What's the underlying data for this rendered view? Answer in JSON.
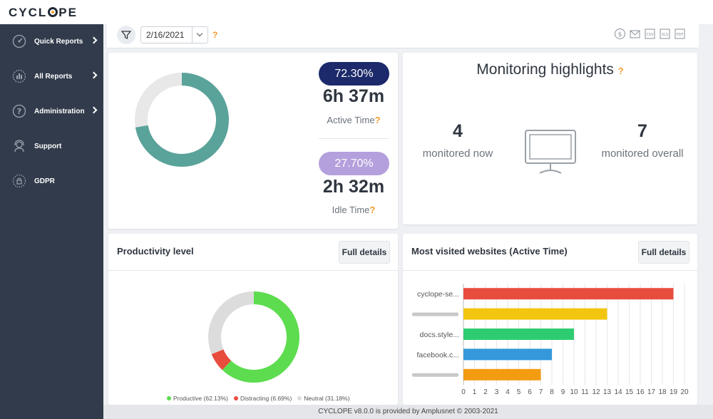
{
  "app": {
    "logo": "CYCLOPE"
  },
  "sidebar": {
    "items": [
      {
        "label": "Quick Reports",
        "icon": "gauge-icon",
        "has_arrow": true
      },
      {
        "label": "All Reports",
        "icon": "reports-icon",
        "has_arrow": true
      },
      {
        "label": "Administration",
        "icon": "help-circle-icon",
        "has_arrow": true
      },
      {
        "label": "Support",
        "icon": "support-headset-icon",
        "has_arrow": false
      },
      {
        "label": "GDPR",
        "icon": "gdpr-lock-icon",
        "has_arrow": false
      }
    ]
  },
  "toolbar": {
    "date_value": "2/16/2021",
    "help": "?",
    "exports": [
      "donate-icon",
      "email-report-icon",
      "csv-export-icon",
      "xls-export-icon",
      "pdf-export-icon"
    ]
  },
  "activity": {
    "active_pct": "72.30%",
    "active_time": "6h 37m",
    "active_label": "Active Time",
    "idle_pct": "27.70%",
    "idle_time": "2h 32m",
    "idle_label": "Idle Time",
    "help": "?",
    "donut": {
      "active_fraction": 0.723,
      "idle_fraction": 0.277,
      "active_color": "#5aa39a",
      "idle_color": "#e8e8e8"
    }
  },
  "highlights": {
    "title": "Monitoring highlights",
    "help": "?",
    "now_count": "4",
    "now_label": "monitored now",
    "overall_count": "7",
    "overall_label": "monitored overall"
  },
  "productivity": {
    "title": "Productivity level",
    "full_details": "Full details",
    "legend": [
      {
        "label": "Productive (62.13%)",
        "color": "#5ddc4f",
        "fraction": 0.6213
      },
      {
        "label": "Distracting (6.69%)",
        "color": "#e84c3d",
        "fraction": 0.0669
      },
      {
        "label": "Neutral (31.18%)",
        "color": "#dcdcdc",
        "fraction": 0.3118
      }
    ]
  },
  "websites": {
    "title": "Most visited websites (Active Time)",
    "full_details": "Full details"
  },
  "chart_data": {
    "type": "bar",
    "orientation": "horizontal",
    "categories": [
      "cyclope-se...",
      "",
      "docs.style...",
      "facebook.c...",
      ""
    ],
    "values": [
      19,
      13,
      10,
      8,
      7
    ],
    "colors": [
      "#e84c3d",
      "#f2c511",
      "#2ecc71",
      "#3498db",
      "#f39c12"
    ],
    "xlim": [
      0,
      20
    ],
    "xticks": [
      0,
      1,
      2,
      3,
      4,
      5,
      6,
      7,
      8,
      9,
      10,
      11,
      12,
      13,
      14,
      15,
      16,
      17,
      18,
      19,
      20
    ],
    "grid": true
  },
  "footer": {
    "text": "CYCLOPE v8.0.0 is provided by Amplusnet © 2003-2021"
  }
}
